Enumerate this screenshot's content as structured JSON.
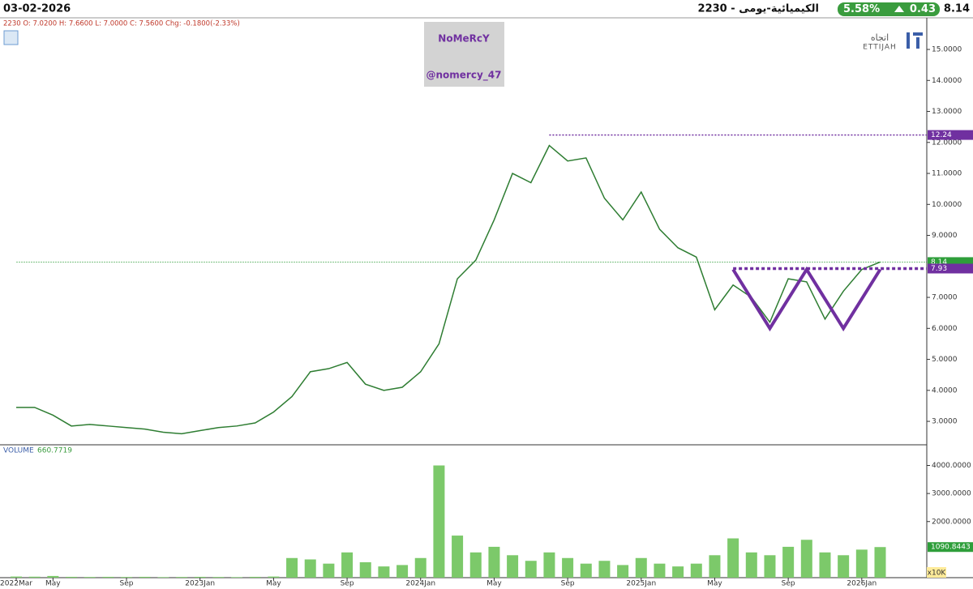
{
  "header": {
    "date": "03-02-2026",
    "symbol": "2230 - الكيميائية-يومى",
    "change_pct": "5.58%",
    "change": "0.43",
    "price": "8.14"
  },
  "chart_data": [
    {
      "type": "line",
      "info": "2230  O: 7.0200  H: 7.6600  L: 7.0000  C: 7.5600  Chg: -0.1800(-2.33%)",
      "watermark": [
        "NoMeRcY",
        "@nomercy_47"
      ],
      "logo": [
        "اتجاه",
        "ETTIJAH"
      ],
      "x": [
        "2022-03",
        "2022-04",
        "2022-05",
        "2022-06",
        "2022-07",
        "2022-08",
        "2022-09",
        "2022-10",
        "2022-11",
        "2022-12",
        "2023-01",
        "2023-02",
        "2023-03",
        "2023-04",
        "2023-05",
        "2023-06",
        "2023-07",
        "2023-08",
        "2023-09",
        "2023-10",
        "2023-11",
        "2023-12",
        "2024-01",
        "2024-02",
        "2024-03",
        "2024-04",
        "2024-05",
        "2024-06",
        "2024-07",
        "2024-08",
        "2024-09",
        "2024-10",
        "2024-11",
        "2024-12",
        "2025-01",
        "2025-02",
        "2025-03",
        "2025-04",
        "2025-05",
        "2025-06",
        "2025-07",
        "2025-08",
        "2025-09",
        "2025-10",
        "2025-11",
        "2025-12",
        "2026-01",
        "2026-02"
      ],
      "color": "#2e7d32",
      "values": [
        3.45,
        3.45,
        3.2,
        2.85,
        2.9,
        2.85,
        2.8,
        2.75,
        2.65,
        2.6,
        2.7,
        2.8,
        2.85,
        2.95,
        3.3,
        3.8,
        4.6,
        4.7,
        4.9,
        4.2,
        4.0,
        4.1,
        4.6,
        5.5,
        7.6,
        8.2,
        9.5,
        11.0,
        10.7,
        11.9,
        11.4,
        11.5,
        10.2,
        9.5,
        10.4,
        9.2,
        8.6,
        8.3,
        6.6,
        7.4,
        7.0,
        6.2,
        7.6,
        7.5,
        6.3,
        7.2,
        7.9,
        8.14
      ],
      "ylim": [
        2.27,
        16.02
      ],
      "yticks": [
        {
          "value": 3,
          "label": "3.0000"
        },
        {
          "value": 4,
          "label": "4.0000"
        },
        {
          "value": 5,
          "label": "5.0000"
        },
        {
          "value": 6,
          "label": "6.0000"
        },
        {
          "value": 7,
          "label": "7.0000"
        },
        {
          "value": 9,
          "label": "9.0000"
        },
        {
          "value": 10,
          "label": "10.0000"
        },
        {
          "value": 11,
          "label": "11.0000"
        },
        {
          "value": 12,
          "label": "12.0000"
        },
        {
          "value": 13,
          "label": "13.0000"
        },
        {
          "value": 14,
          "label": "14.0000"
        },
        {
          "value": 15,
          "label": "15.0000"
        }
      ],
      "levels": [
        {
          "value": 12.24,
          "label": "12.24",
          "from": "2024-08",
          "color": "#7030a0",
          "style": "dotted"
        },
        {
          "value": 8.14,
          "label": "8.14",
          "from": "2022-03",
          "color": "#2e9e3a",
          "style": "thin"
        },
        {
          "value": 7.93,
          "label": "7.93",
          "from": "2025-06",
          "color": "#7030a0",
          "style": "thick"
        }
      ],
      "pattern": {
        "color": "#7030a0",
        "points": [
          {
            "x": "2025-06",
            "y": 7.9
          },
          {
            "x": "2025-08",
            "y": 6.0
          },
          {
            "x": "2025-10",
            "y": 7.9
          },
          {
            "x": "2025-12",
            "y": 6.0
          },
          {
            "x": "2026-02",
            "y": 7.9
          }
        ]
      }
    },
    {
      "type": "bar",
      "title": "VOLUME",
      "subtitle": "660.7719",
      "unit": "x10K",
      "x": [
        "2022-03",
        "2022-04",
        "2022-05",
        "2022-06",
        "2022-07",
        "2022-08",
        "2022-09",
        "2022-10",
        "2022-11",
        "2022-12",
        "2023-01",
        "2023-02",
        "2023-03",
        "2023-04",
        "2023-05",
        "2023-06",
        "2023-07",
        "2023-08",
        "2023-09",
        "2023-10",
        "2023-11",
        "2023-12",
        "2024-01",
        "2024-02",
        "2024-03",
        "2024-04",
        "2024-05",
        "2024-06",
        "2024-07",
        "2024-08",
        "2024-09",
        "2024-10",
        "2024-11",
        "2024-12",
        "2025-01",
        "2025-02",
        "2025-03",
        "2025-04",
        "2025-05",
        "2025-06",
        "2025-07",
        "2025-08",
        "2025-09",
        "2025-10",
        "2025-11",
        "2025-12",
        "2026-01",
        "2026-02"
      ],
      "color": "#7cc96a",
      "values": [
        40,
        35,
        60,
        30,
        25,
        30,
        25,
        30,
        20,
        25,
        30,
        25,
        20,
        30,
        40,
        700,
        650,
        500,
        900,
        550,
        400,
        450,
        700,
        4000,
        1500,
        900,
        1100,
        800,
        600,
        900,
        700,
        500,
        600,
        450,
        700,
        500,
        400,
        500,
        800,
        1400,
        900,
        800,
        1100,
        1350,
        900,
        800,
        1000,
        1090.8443
      ],
      "ylim": [
        0,
        4650
      ],
      "yticks": [
        {
          "value": 2000,
          "label": "2000.0000"
        },
        {
          "value": 3000,
          "label": "3000.0000"
        },
        {
          "value": 4000,
          "label": "4000.0000"
        }
      ],
      "levels": [
        {
          "value": 1090.8443,
          "label": "1090.8443",
          "color": "#2e9e3a"
        }
      ],
      "xticks": [
        {
          "value": "2022-03",
          "label": "2022Mar"
        },
        {
          "value": "2022-05",
          "label": "May"
        },
        {
          "value": "2022-09",
          "label": "Sep"
        },
        {
          "value": "2023-01",
          "label": "2023Jan"
        },
        {
          "value": "2023-05",
          "label": "May"
        },
        {
          "value": "2023-09",
          "label": "Sep"
        },
        {
          "value": "2024-01",
          "label": "2024Jan"
        },
        {
          "value": "2024-05",
          "label": "May"
        },
        {
          "value": "2024-09",
          "label": "Sep"
        },
        {
          "value": "2025-01",
          "label": "2025Jan"
        },
        {
          "value": "2025-05",
          "label": "May"
        },
        {
          "value": "2025-09",
          "label": "Sep"
        },
        {
          "value": "2026-01",
          "label": "2026Jan"
        }
      ]
    }
  ]
}
